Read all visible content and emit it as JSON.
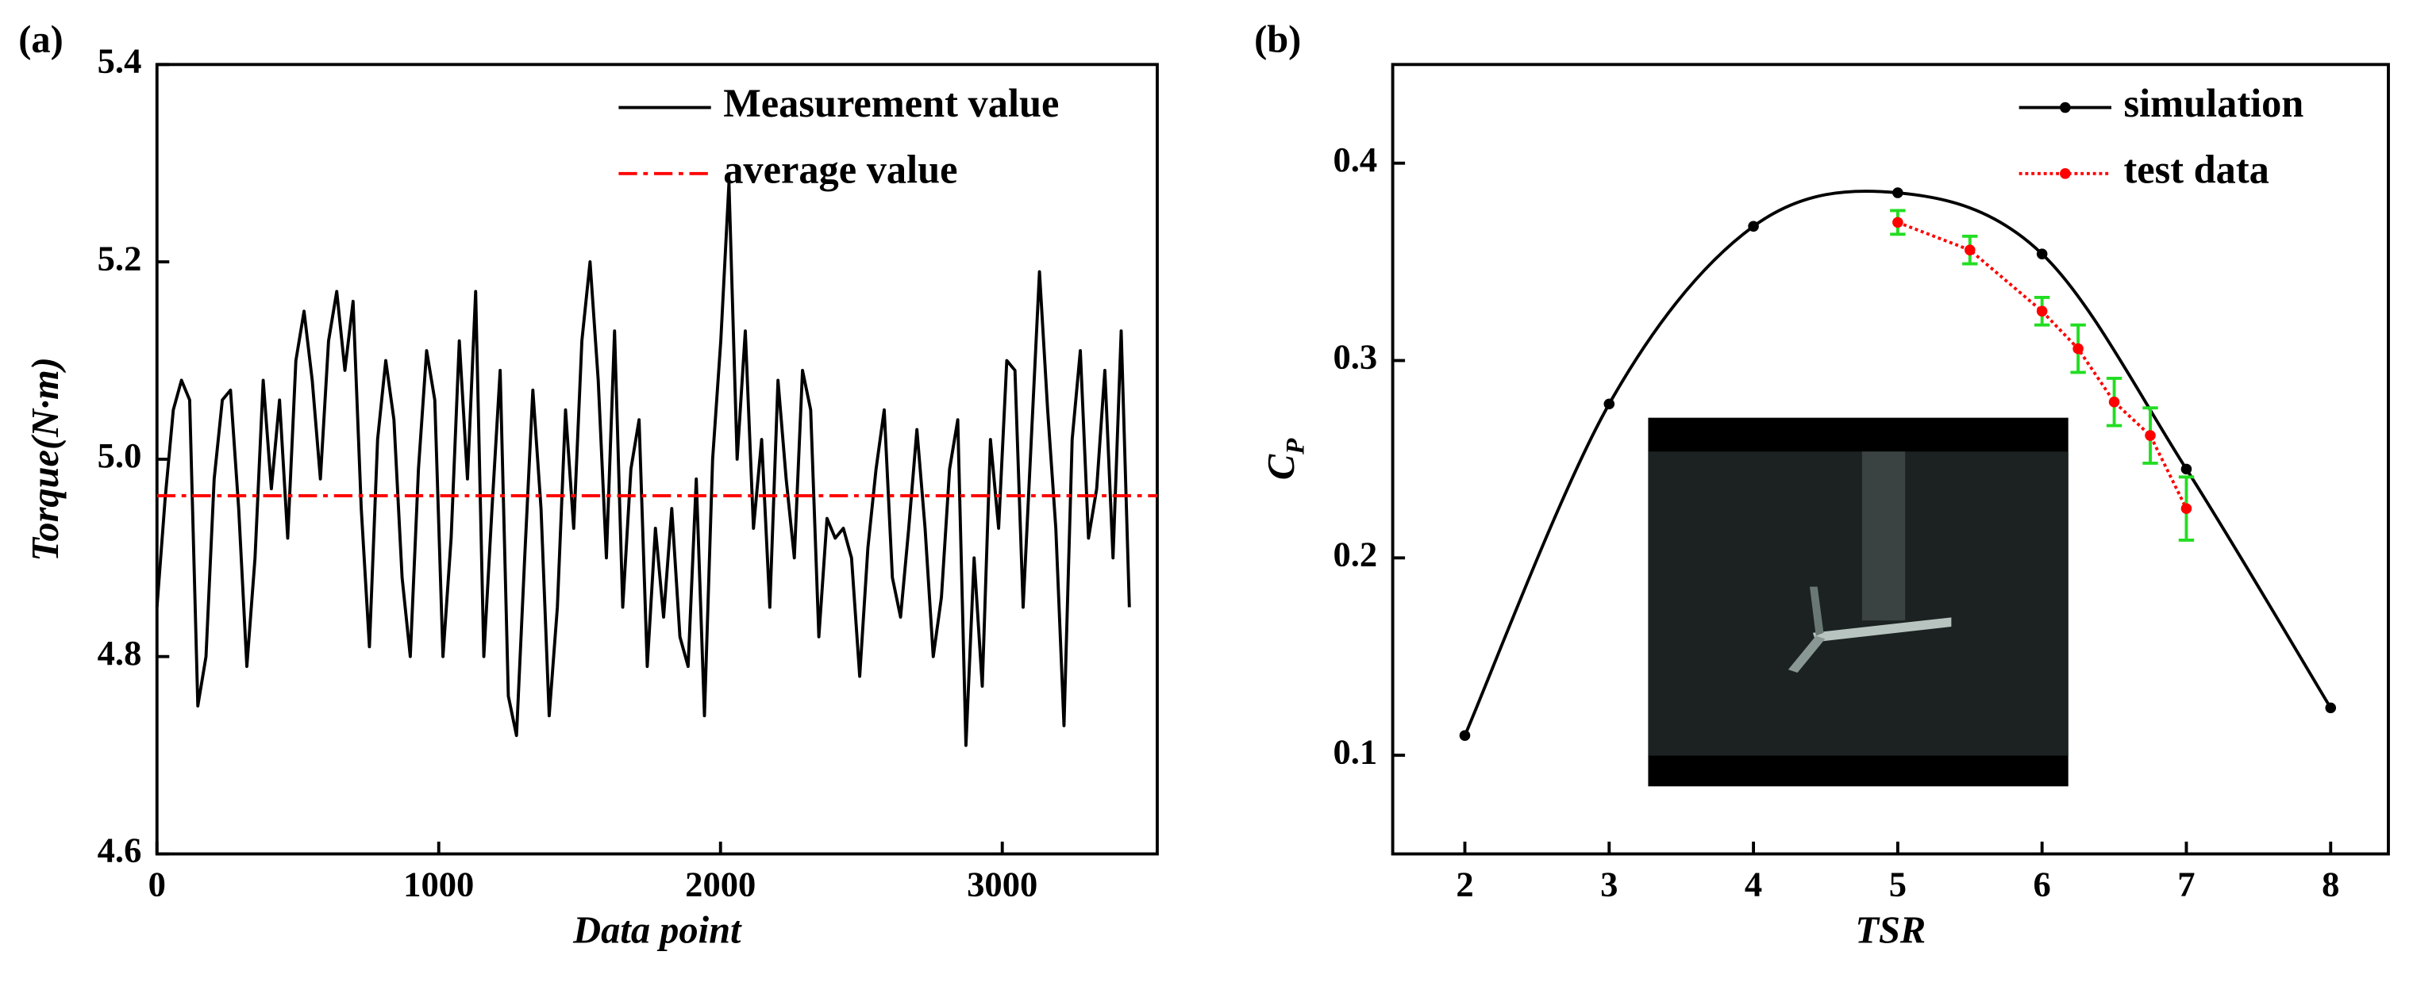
{
  "chart_data": [
    {
      "type": "line",
      "panel": "(a)",
      "x_label": "Data point",
      "y_label": "Torque(N·m)",
      "xlim": [
        0,
        3550
      ],
      "xticks": [
        0,
        1000,
        2000,
        3000
      ],
      "ylim": [
        4.6,
        5.4
      ],
      "yticks": [
        4.6,
        4.8,
        {
          "value": 5.0,
          "label": "5.0"
        },
        5.2,
        5.4
      ],
      "legend": "upper right",
      "series": [
        {
          "name": "Measurement value",
          "color": "#000000",
          "x": [
            0,
            29,
            58,
            87,
            116,
            145,
            174,
            203,
            232,
            261,
            290,
            319,
            348,
            377,
            406,
            435,
            464,
            493,
            522,
            551,
            580,
            609,
            638,
            667,
            696,
            725,
            754,
            783,
            812,
            841,
            870,
            899,
            928,
            957,
            986,
            1015,
            1044,
            1073,
            1102,
            1131,
            1160,
            1189,
            1218,
            1247,
            1276,
            1305,
            1334,
            1363,
            1392,
            1421,
            1450,
            1479,
            1508,
            1537,
            1566,
            1595,
            1624,
            1653,
            1682,
            1711,
            1740,
            1769,
            1798,
            1827,
            1856,
            1885,
            1914,
            1943,
            1972,
            2001,
            2030,
            2059,
            2088,
            2117,
            2146,
            2175,
            2204,
            2233,
            2262,
            2291,
            2320,
            2349,
            2378,
            2407,
            2436,
            2465,
            2494,
            2523,
            2552,
            2581,
            2610,
            2639,
            2668,
            2697,
            2726,
            2755,
            2784,
            2813,
            2842,
            2871,
            2900,
            2929,
            2958,
            2987,
            3016,
            3045,
            3074,
            3103,
            3132,
            3161,
            3190,
            3219,
            3248,
            3277,
            3306,
            3335,
            3364,
            3393,
            3422,
            3451
          ],
          "values": [
            4.85,
            4.96,
            5.05,
            5.08,
            5.06,
            4.75,
            4.8,
            4.98,
            5.06,
            5.07,
            4.95,
            4.79,
            4.9,
            5.08,
            4.97,
            5.06,
            4.92,
            5.1,
            5.15,
            5.08,
            4.98,
            5.12,
            5.17,
            5.09,
            5.16,
            4.95,
            4.81,
            5.02,
            5.1,
            5.04,
            4.88,
            4.8,
            4.99,
            5.11,
            5.06,
            4.8,
            4.92,
            5.12,
            4.98,
            5.17,
            4.8,
            4.95,
            5.09,
            4.76,
            4.72,
            4.9,
            5.07,
            4.95,
            4.74,
            4.85,
            5.05,
            4.93,
            5.12,
            5.2,
            5.08,
            4.9,
            5.13,
            4.85,
            4.99,
            5.04,
            4.79,
            4.93,
            4.84,
            4.95,
            4.82,
            4.79,
            4.98,
            4.74,
            5.0,
            5.12,
            5.28,
            5.0,
            5.13,
            4.93,
            5.02,
            4.85,
            5.08,
            4.98,
            4.9,
            5.09,
            5.05,
            4.82,
            4.94,
            4.92,
            4.93,
            4.9,
            4.78,
            4.91,
            4.99,
            5.05,
            4.88,
            4.84,
            4.93,
            5.03,
            4.93,
            4.8,
            4.86,
            4.99,
            5.04,
            4.71,
            4.9,
            4.77,
            5.02,
            4.93,
            5.1,
            5.09,
            4.85,
            5.02,
            5.19,
            5.05,
            4.93,
            4.73,
            5.02,
            5.11,
            4.92,
            4.97,
            5.09,
            4.9,
            5.13,
            4.85
          ]
        },
        {
          "name": "average value",
          "color": "#ff0000",
          "style": "dashdot",
          "value": 4.963
        }
      ]
    },
    {
      "type": "line",
      "panel": "(b)",
      "x_label": "TSR",
      "y_label": {
        "main": "C",
        "sub": "P"
      },
      "xlim": [
        1.5,
        8.4
      ],
      "xticks": [
        2,
        3,
        4,
        5,
        6,
        7,
        8
      ],
      "ylim": [
        0.05,
        0.45
      ],
      "yticks": [
        0.1,
        0.2,
        0.3,
        0.4
      ],
      "legend": "upper right",
      "series": [
        {
          "name": "simulation",
          "color": "#000000",
          "style": "smooth",
          "x": [
            2,
            3,
            4,
            5,
            6,
            7,
            8
          ],
          "values": [
            0.11,
            0.278,
            0.368,
            0.385,
            0.354,
            0.245,
            0.124
          ]
        },
        {
          "name": "test data",
          "color": "#ff0000",
          "style": "dotted",
          "error_color": "#22dd22",
          "x": [
            5,
            5.5,
            6,
            6.25,
            6.5,
            6.75,
            7
          ],
          "values": [
            0.37,
            0.356,
            0.325,
            0.306,
            0.279,
            0.262,
            0.225
          ],
          "errors": [
            0.006,
            0.007,
            0.007,
            0.012,
            0.012,
            0.014,
            0.016
          ]
        }
      ]
    }
  ]
}
